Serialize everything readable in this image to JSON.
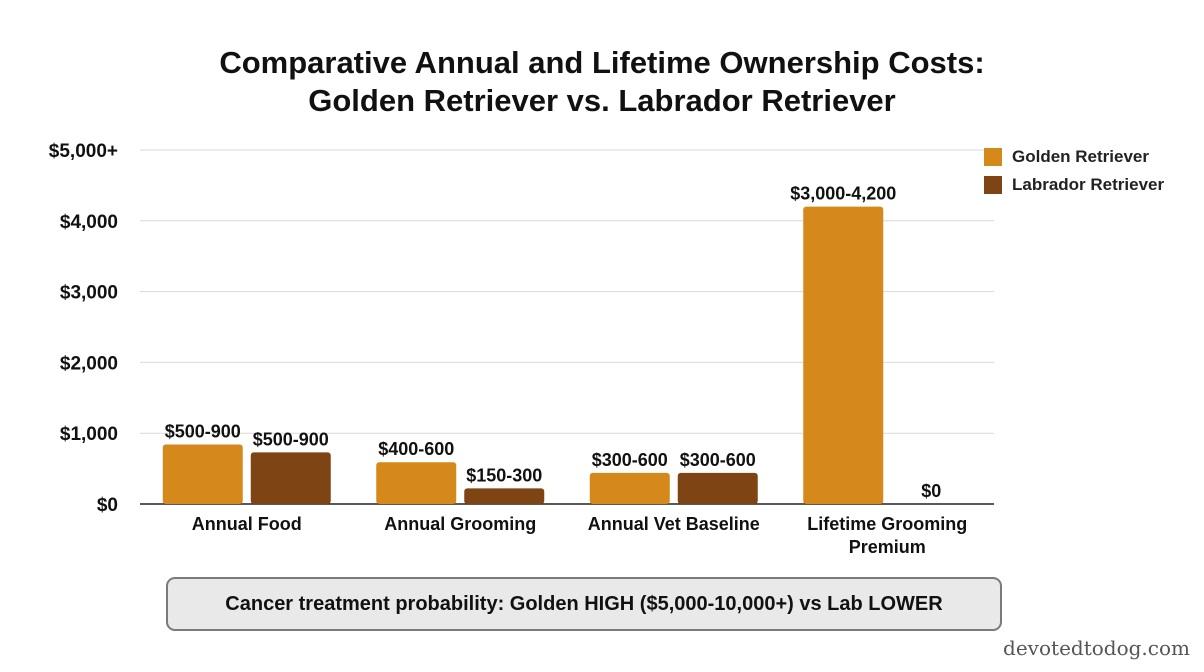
{
  "title_line1": "Comparative Annual and Lifetime Ownership Costs:",
  "title_line2": "Golden Retriever vs. Labrador Retriever",
  "note": "Cancer treatment probability: Golden HIGH ($5,000-10,000+) vs Lab LOWER",
  "watermark": "devotedtodog.com",
  "colors": {
    "golden": "#D4891A",
    "labrador": "#7E4413",
    "grid": "#d9d9d9",
    "axis": "#222222"
  },
  "chart_data": {
    "type": "bar",
    "title": "Comparative Annual and Lifetime Ownership Costs: Golden Retriever vs. Labrador Retriever",
    "categories": [
      "Annual Food",
      "Annual Grooming",
      "Annual Vet Baseline",
      "Lifetime Grooming Premium"
    ],
    "series": [
      {
        "name": "Golden Retriever",
        "values": [
          840,
          590,
          440,
          4200
        ],
        "labels": [
          "$500-900",
          "$400-600",
          "$300-600",
          "$3,000-4,200"
        ]
      },
      {
        "name": "Labrador Retriever",
        "values": [
          730,
          220,
          440,
          0
        ],
        "labels": [
          "$500-900",
          "$150-300",
          "$300-600",
          "$0"
        ]
      }
    ],
    "yticks": [
      "$0",
      "$1,000",
      "$2,000",
      "$3,000",
      "$4,000",
      "$5,000+"
    ],
    "ylim": [
      0,
      5000
    ],
    "grid": true,
    "legend_position": "top-right"
  }
}
